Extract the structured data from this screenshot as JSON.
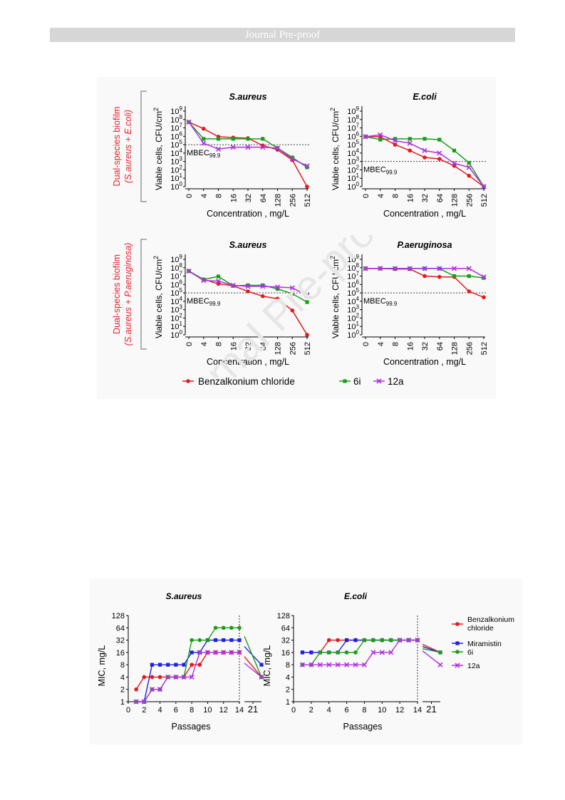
{
  "header": {
    "banner": "Journal Pre-proof"
  },
  "watermark": "Journal Pre-proof",
  "figure1": {
    "y_axis_label": "Viable cells, CFU/cm",
    "y_axis_label_sup": "2",
    "x_axis_label": "Concentration , mg/L",
    "x_ticks": [
      "0",
      "4",
      "8",
      "16",
      "32",
      "64",
      "128",
      "256",
      "512"
    ],
    "y_tick_base": "10",
    "y_tick_exps": [
      "0",
      "1",
      "2",
      "3",
      "4",
      "5",
      "6",
      "7",
      "8",
      "9"
    ],
    "threshold_label": "MBEC",
    "threshold_sub": "99.9",
    "row_labels": [
      {
        "line1": "Dual-species biofilm",
        "line2": "(S.aureus + E.coli)"
      },
      {
        "line1": "Dual-species biofilm",
        "line2": "(S.aureus + P.aeruginosa)"
      }
    ],
    "legend": [
      "Benzalkonium chloride",
      "6i",
      "12a"
    ],
    "colors": {
      "benzalkonium": "#e41a1c",
      "6i": "#1a9e1a",
      "12a": "#b030e0",
      "row_label": "#e8202a"
    }
  },
  "figure2": {
    "y_axis_label": "MIC, mg/L",
    "x_axis_label": "Passages",
    "y_ticks": [
      "1",
      "2",
      "4",
      "8",
      "16",
      "32",
      "64",
      "128"
    ],
    "x_ticks": [
      "0",
      "2",
      "4",
      "6",
      "8",
      "10",
      "12",
      "14"
    ],
    "x_break_tick": "21",
    "legend": [
      "Benzalkonium chloride",
      "Miramistin",
      "6i",
      "12a"
    ],
    "colors": {
      "benzalkonium": "#e41a1c",
      "miramistin": "#2020e0",
      "6i": "#1a9e1a",
      "12a": "#b030e0"
    }
  },
  "chart_data": [
    {
      "type": "line",
      "title": "S.aureus",
      "row": 1,
      "xlabel": "Concentration , mg/L",
      "ylabel": "Viable cells, CFU/cm2",
      "y_scale": "log",
      "ylim": [
        1,
        1000000000
      ],
      "categories": [
        "0",
        "4",
        "8",
        "16",
        "32",
        "64",
        "128",
        "256",
        "512"
      ],
      "threshold": 100000,
      "series": [
        {
          "name": "Benzalkonium chloride",
          "values": [
            50000000,
            8000000,
            900000,
            700000,
            600000,
            80000,
            25000,
            1500,
            1
          ]
        },
        {
          "name": "6i",
          "values": [
            50000000,
            500000,
            500000,
            500000,
            500000,
            500000,
            40000,
            3000,
            200
          ]
        },
        {
          "name": "12a",
          "values": [
            50000000,
            150000,
            30000,
            50000,
            50000,
            50000,
            40000,
            2000,
            300
          ]
        }
      ]
    },
    {
      "type": "line",
      "title": "E.coli",
      "row": 1,
      "xlabel": "Concentration , mg/L",
      "ylabel": "Viable cells, CFU/cm2",
      "y_scale": "log",
      "ylim": [
        1,
        1000000000
      ],
      "categories": [
        "0",
        "4",
        "8",
        "16",
        "32",
        "64",
        "128",
        "256",
        "512"
      ],
      "threshold": 1000,
      "series": [
        {
          "name": "Benzalkonium chloride",
          "values": [
            900000,
            900000,
            100000,
            20000,
            3000,
            2000,
            300,
            20,
            1
          ]
        },
        {
          "name": "6i",
          "values": [
            900000,
            400000,
            500000,
            500000,
            500000,
            400000,
            20000,
            700,
            1
          ]
        },
        {
          "name": "12a",
          "values": [
            900000,
            1500000,
            300000,
            150000,
            20000,
            10000,
            600,
            200,
            1
          ]
        }
      ]
    },
    {
      "type": "line",
      "title": "S.aureus",
      "row": 2,
      "xlabel": "Concentration , mg/L",
      "ylabel": "Viable cells, CFU/cm2",
      "y_scale": "log",
      "ylim": [
        1,
        1000000000
      ],
      "categories": [
        "0",
        "4",
        "8",
        "16",
        "32",
        "64",
        "128",
        "256",
        "512"
      ],
      "threshold": 100000,
      "series": [
        {
          "name": "Benzalkonium chloride",
          "values": [
            40000000,
            4000000,
            1200000,
            700000,
            150000,
            40000,
            20000,
            800,
            1
          ]
        },
        {
          "name": "6i",
          "values": [
            40000000,
            4000000,
            9000000,
            700000,
            800000,
            800000,
            300000,
            80000,
            8000
          ]
        },
        {
          "name": "12a",
          "values": [
            40000000,
            3000000,
            2500000,
            800000,
            600000,
            600000,
            500000,
            400000,
            50000
          ]
        }
      ]
    },
    {
      "type": "line",
      "title": "P.aeruginosa",
      "row": 2,
      "xlabel": "Concentration , mg/L",
      "ylabel": "Viable cells, CFU/cm2",
      "y_scale": "log",
      "ylim": [
        1,
        1000000000
      ],
      "categories": [
        "0",
        "4",
        "8",
        "16",
        "32",
        "64",
        "128",
        "256",
        "512"
      ],
      "threshold": 100000,
      "series": [
        {
          "name": "Benzalkonium chloride",
          "values": [
            80000000,
            80000000,
            70000000,
            70000000,
            10000000,
            8000000,
            8000000,
            150000,
            30000
          ]
        },
        {
          "name": "6i",
          "values": [
            80000000,
            80000000,
            80000000,
            80000000,
            80000000,
            80000000,
            10000000,
            10000000,
            6000000
          ]
        },
        {
          "name": "12a",
          "values": [
            80000000,
            80000000,
            80000000,
            80000000,
            80000000,
            80000000,
            80000000,
            80000000,
            8000000
          ]
        }
      ]
    },
    {
      "type": "line",
      "title": "S.aureus",
      "xlabel": "Passages",
      "ylabel": "MIC, mg/L",
      "y_scale": "log2",
      "ylim": [
        1,
        128
      ],
      "xlim": [
        0,
        14
      ],
      "x_break": 21,
      "series": [
        {
          "name": "Benzalkonium chloride",
          "x": [
            1,
            2,
            3,
            4,
            5,
            6,
            7,
            8,
            9,
            10,
            11,
            12,
            13,
            14
          ],
          "values": [
            2,
            4,
            4,
            4,
            4,
            4,
            4,
            8,
            8,
            16,
            16,
            16,
            16,
            16
          ],
          "value_at_21": 4
        },
        {
          "name": "Miramistin",
          "x": [
            1,
            2,
            3,
            4,
            5,
            6,
            7,
            8,
            9,
            10,
            11,
            12,
            13,
            14
          ],
          "values": [
            1,
            1,
            8,
            8,
            8,
            8,
            8,
            16,
            16,
            32,
            32,
            32,
            32,
            32
          ],
          "value_at_21": 8
        },
        {
          "name": "6i",
          "x": [
            1,
            2,
            3,
            4,
            5,
            6,
            7,
            8,
            9,
            10,
            11,
            12,
            13,
            14
          ],
          "values": [
            1,
            1,
            2,
            2,
            4,
            4,
            4,
            32,
            32,
            32,
            64,
            64,
            64,
            64
          ],
          "value_at_21": 4
        },
        {
          "name": "12a",
          "x": [
            1,
            2,
            3,
            4,
            5,
            6,
            7,
            8,
            9,
            10,
            11,
            12,
            13,
            14
          ],
          "values": [
            1,
            1,
            2,
            2,
            4,
            4,
            4,
            4,
            16,
            16,
            16,
            16,
            16,
            16
          ],
          "value_at_21": 4
        }
      ]
    },
    {
      "type": "line",
      "title": "E.coli",
      "xlabel": "Passages",
      "ylabel": "MIC, mg/L",
      "y_scale": "log2",
      "ylim": [
        1,
        128
      ],
      "xlim": [
        0,
        14
      ],
      "x_break": 21,
      "series": [
        {
          "name": "Benzalkonium chloride",
          "x": [
            1,
            2,
            3,
            4,
            5,
            6,
            7,
            8,
            9,
            10,
            11,
            12,
            13,
            14
          ],
          "values": [
            16,
            16,
            16,
            32,
            32,
            32,
            32,
            32,
            32,
            32,
            32,
            32,
            32,
            32
          ],
          "value_at_21": 16
        },
        {
          "name": "Miramistin",
          "x": [
            1,
            2,
            3,
            4,
            5,
            6,
            7,
            8,
            9,
            10,
            11,
            12,
            13,
            14
          ],
          "values": [
            16,
            16,
            16,
            16,
            16,
            32,
            32,
            32,
            32,
            32,
            32,
            32,
            32,
            32
          ],
          "value_at_21": 16
        },
        {
          "name": "6i",
          "x": [
            1,
            2,
            3,
            4,
            5,
            6,
            7,
            8,
            9,
            10,
            11,
            12,
            13,
            14
          ],
          "values": [
            8,
            8,
            16,
            16,
            16,
            16,
            16,
            32,
            32,
            32,
            32,
            32,
            32,
            32
          ],
          "value_at_21": 16
        },
        {
          "name": "12a",
          "x": [
            1,
            2,
            3,
            4,
            5,
            6,
            7,
            8,
            9,
            10,
            11,
            12,
            13,
            14
          ],
          "values": [
            8,
            8,
            8,
            8,
            8,
            8,
            8,
            8,
            16,
            16,
            16,
            32,
            32,
            32
          ],
          "value_at_21": 8
        }
      ]
    }
  ]
}
